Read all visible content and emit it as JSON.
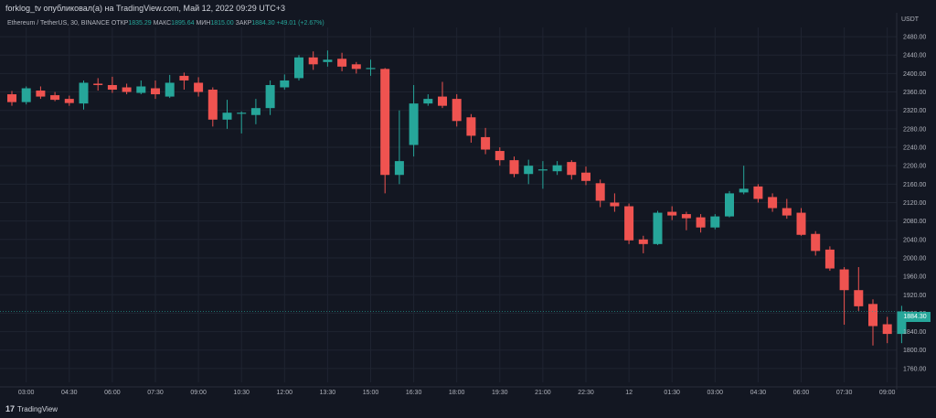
{
  "header": {
    "publish_text": "forklog_tv опубликовал(а) на TradingView.com, Май 12, 2022 09:29 UTC+3"
  },
  "info": {
    "symbol": "Ethereum / TetherUS, 30, BINANCE",
    "open_label": "ОТКР",
    "open_value": "1835.29",
    "high_label": "МАКС",
    "high_value": "1895.64",
    "low_label": "МИН",
    "low_value": "1815.00",
    "close_label": "ЗАКР",
    "close_value": "1884.30",
    "change": "+49.01 (+2.67%)"
  },
  "currency": "USDT",
  "current_price": "1884.30",
  "footer": {
    "brand": "TradingView"
  },
  "colors": {
    "up": "#26a69a",
    "down": "#ef5350",
    "grid": "#1f2431",
    "background": "#131722"
  },
  "chart_data": {
    "type": "candlestick",
    "ylim": [
      1730,
      2500
    ],
    "y_ticks": [
      1760,
      1800,
      1840,
      1880,
      1920,
      1960,
      2000,
      2040,
      2080,
      2120,
      2160,
      2200,
      2240,
      2280,
      2320,
      2360,
      2400,
      2440,
      2480
    ],
    "y_tick_labels": [
      "1760.00",
      "1800.00",
      "1840.00",
      "1880.00",
      "1920.00",
      "1960.00",
      "2000.00",
      "2040.00",
      "2080.00",
      "2120.00",
      "2160.00",
      "2200.00",
      "2240.00",
      "2280.00",
      "2320.00",
      "2360.00",
      "2400.00",
      "2440.00",
      "2480.00"
    ],
    "x_tick_labels": [
      {
        "label": "03:00",
        "index": 1
      },
      {
        "label": "04:30",
        "index": 4
      },
      {
        "label": "06:00",
        "index": 7
      },
      {
        "label": "07:30",
        "index": 10
      },
      {
        "label": "09:00",
        "index": 13
      },
      {
        "label": "10:30",
        "index": 16
      },
      {
        "label": "12:00",
        "index": 19
      },
      {
        "label": "13:30",
        "index": 22
      },
      {
        "label": "15:00",
        "index": 25
      },
      {
        "label": "16:30",
        "index": 28
      },
      {
        "label": "18:00",
        "index": 31
      },
      {
        "label": "19:30",
        "index": 34
      },
      {
        "label": "21:00",
        "index": 37
      },
      {
        "label": "22:30",
        "index": 40
      },
      {
        "label": "12",
        "index": 43
      },
      {
        "label": "01:30",
        "index": 46
      },
      {
        "label": "03:00",
        "index": 49
      },
      {
        "label": "04:30",
        "index": 52
      },
      {
        "label": "06:00",
        "index": 55
      },
      {
        "label": "07:30",
        "index": 58
      },
      {
        "label": "09:00",
        "index": 61
      }
    ],
    "candles": [
      [
        2355,
        2338,
        2362,
        2330
      ],
      [
        2338,
        2368,
        2372,
        2333
      ],
      [
        2363,
        2350,
        2372,
        2345
      ],
      [
        2353,
        2343,
        2360,
        2340
      ],
      [
        2345,
        2336,
        2352,
        2330
      ],
      [
        2335,
        2380,
        2385,
        2322
      ],
      [
        2378,
        2375,
        2390,
        2363
      ],
      [
        2375,
        2365,
        2393,
        2358
      ],
      [
        2370,
        2360,
        2378,
        2355
      ],
      [
        2358,
        2372,
        2385,
        2355
      ],
      [
        2368,
        2355,
        2385,
        2345
      ],
      [
        2350,
        2380,
        2397,
        2347
      ],
      [
        2395,
        2385,
        2402,
        2365
      ],
      [
        2380,
        2360,
        2392,
        2350
      ],
      [
        2365,
        2300,
        2370,
        2285
      ],
      [
        2300,
        2315,
        2343,
        2280
      ],
      [
        2315,
        2315,
        2318,
        2270
      ],
      [
        2310,
        2325,
        2345,
        2290
      ],
      [
        2325,
        2375,
        2385,
        2310
      ],
      [
        2370,
        2385,
        2398,
        2365
      ],
      [
        2390,
        2435,
        2440,
        2385
      ],
      [
        2435,
        2420,
        2448,
        2408
      ],
      [
        2425,
        2430,
        2450,
        2415
      ],
      [
        2432,
        2415,
        2445,
        2405
      ],
      [
        2420,
        2410,
        2425,
        2400
      ],
      [
        2410,
        2412,
        2430,
        2395
      ],
      [
        2410,
        2180,
        2412,
        2140
      ],
      [
        2180,
        2210,
        2320,
        2160
      ],
      [
        2245,
        2335,
        2375,
        2220
      ],
      [
        2335,
        2345,
        2355,
        2330
      ],
      [
        2350,
        2330,
        2382,
        2325
      ],
      [
        2345,
        2297,
        2355,
        2285
      ],
      [
        2305,
        2265,
        2312,
        2250
      ],
      [
        2262,
        2235,
        2282,
        2225
      ],
      [
        2232,
        2212,
        2240,
        2200
      ],
      [
        2212,
        2182,
        2220,
        2175
      ],
      [
        2182,
        2200,
        2213,
        2160
      ],
      [
        2190,
        2192,
        2210,
        2150
      ],
      [
        2188,
        2201,
        2210,
        2180
      ],
      [
        2208,
        2180,
        2212,
        2170
      ],
      [
        2185,
        2167,
        2198,
        2158
      ],
      [
        2162,
        2124,
        2170,
        2110
      ],
      [
        2120,
        2112,
        2140,
        2100
      ],
      [
        2112,
        2038,
        2118,
        2030
      ],
      [
        2040,
        2030,
        2048,
        2010
      ],
      [
        2030,
        2098,
        2102,
        2028
      ],
      [
        2100,
        2092,
        2112,
        2082
      ],
      [
        2095,
        2086,
        2100,
        2060
      ],
      [
        2088,
        2066,
        2095,
        2055
      ],
      [
        2066,
        2090,
        2095,
        2062
      ],
      [
        2090,
        2140,
        2145,
        2088
      ],
      [
        2142,
        2150,
        2200,
        2138
      ],
      [
        2155,
        2128,
        2160,
        2120
      ],
      [
        2132,
        2108,
        2140,
        2100
      ],
      [
        2108,
        2092,
        2128,
        2085
      ],
      [
        2098,
        2050,
        2108,
        2048
      ],
      [
        2052,
        2015,
        2058,
        2005
      ],
      [
        2018,
        1977,
        2025,
        1972
      ],
      [
        1975,
        1930,
        1980,
        1855
      ],
      [
        1930,
        1895,
        1980,
        1885
      ],
      [
        1900,
        1852,
        1910,
        1810
      ],
      [
        1856,
        1835,
        1872,
        1815
      ],
      [
        1835,
        1884,
        1896,
        1815
      ]
    ]
  }
}
